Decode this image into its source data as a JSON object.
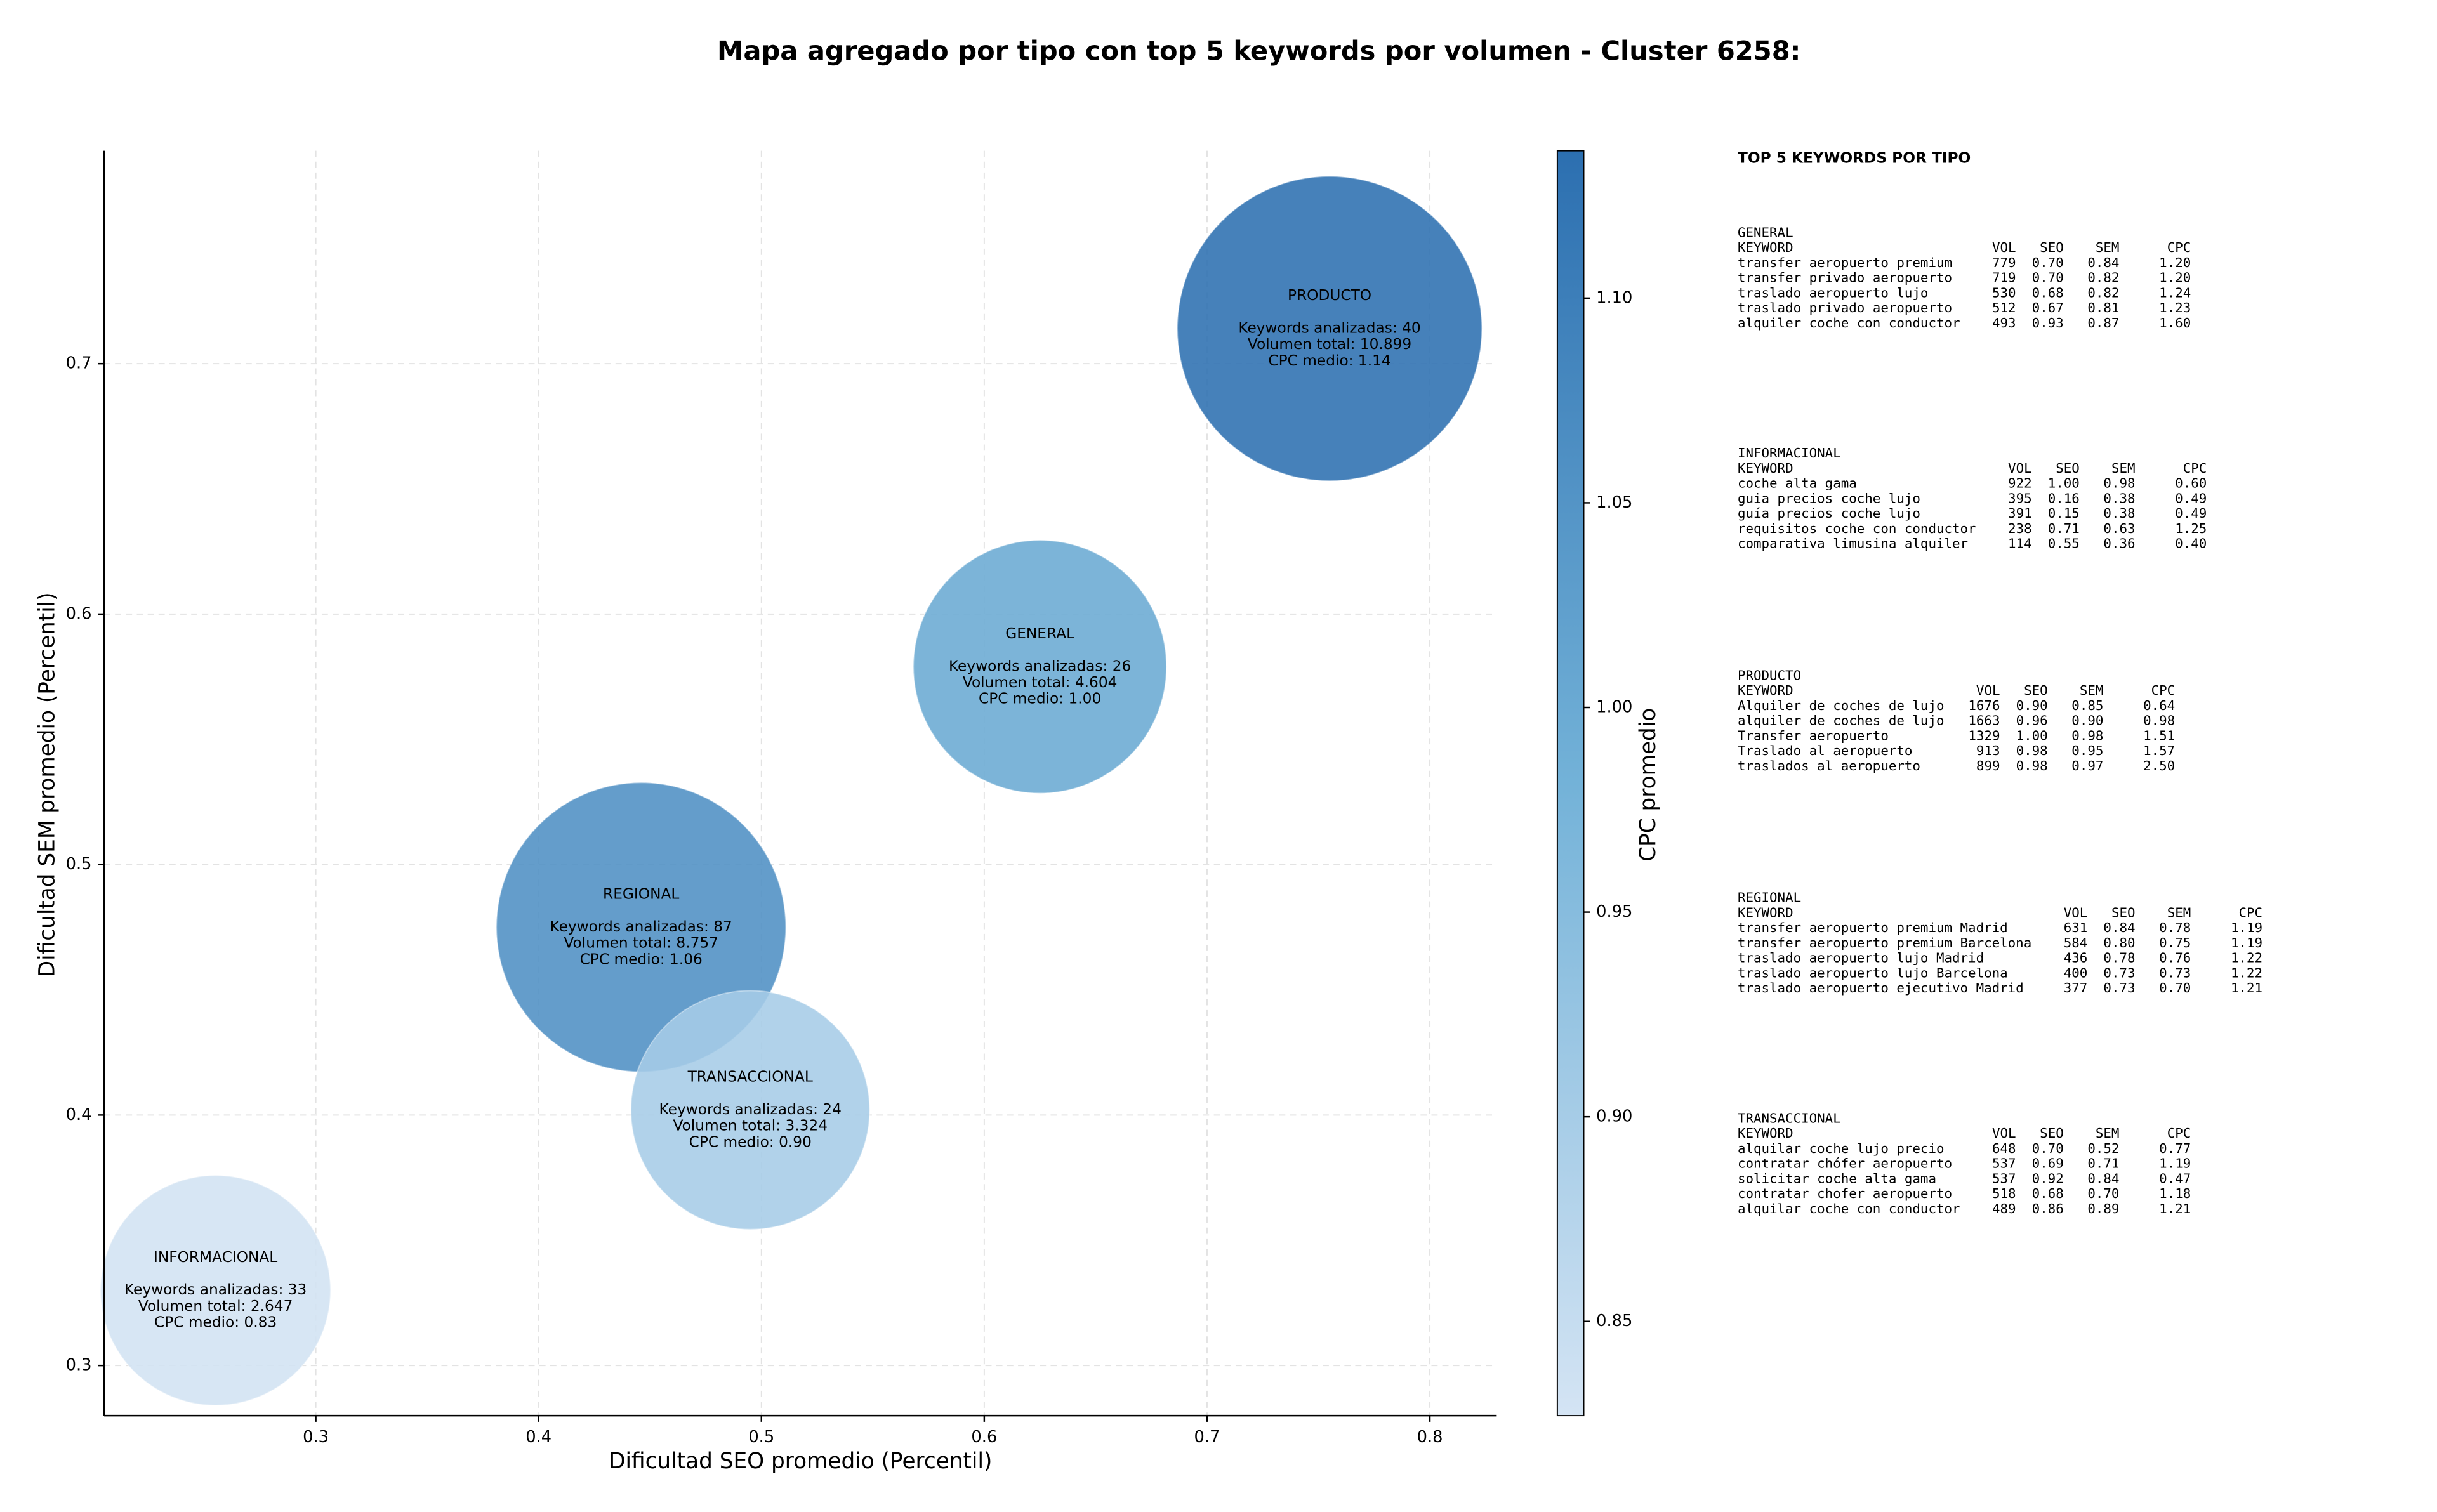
{
  "chart_data": {
    "type": "bubble",
    "title": "Mapa agregado por tipo con top 5 keywords por volumen - Cluster 6258:",
    "xlabel": "Dificultad SEO promedio (Percentil)",
    "ylabel": "Dificultad SEM promedio (Percentil)",
    "xlim": [
      0.205,
      0.83
    ],
    "ylim": [
      0.28,
      0.785
    ],
    "xticks": [
      0.3,
      0.4,
      0.5,
      0.6,
      0.7,
      0.8
    ],
    "yticks": [
      0.3,
      0.4,
      0.5,
      0.6,
      0.7
    ],
    "grid": true,
    "categories": [
      "GENERAL",
      "INFORMACIONAL",
      "PRODUCTO",
      "REGIONAL",
      "TRANSACCIONAL"
    ],
    "x": [
      0.625,
      0.255,
      0.755,
      0.446,
      0.495
    ],
    "values": [
      0.579,
      0.33,
      0.714,
      0.475,
      0.402
    ],
    "sizes": [
      4604,
      2647,
      10899,
      8757,
      3324
    ],
    "cpc": [
      1.0,
      0.83,
      1.14,
      1.06,
      0.9
    ],
    "annotations": [
      [
        "Keywords analizadas: 26",
        "Volumen total: 4.604",
        "CPC medio: 1.00"
      ],
      [
        "Keywords analizadas: 33",
        "Volumen total: 2.647",
        "CPC medio: 0.83"
      ],
      [
        "Keywords analizadas: 40",
        "Volumen total: 10.899",
        "CPC medio: 1.14"
      ],
      [
        "Keywords analizadas: 87",
        "Volumen total: 8.757",
        "CPC medio: 1.06"
      ],
      [
        "Keywords analizadas: 24",
        "Volumen total: 3.324",
        "CPC medio: 0.90"
      ]
    ],
    "colorbar": {
      "label": "CPC promedio",
      "lim": [
        0.827,
        1.136
      ],
      "ticks": [
        0.85,
        {
          "value": 0.9,
          "label": "0.90"
        },
        0.95,
        {
          "value": 1.0,
          "label": "1.00"
        },
        1.05,
        {
          "value": 1.1,
          "label": "1.10"
        }
      ],
      "colormap": [
        "#d4e4f4",
        "#73b2d8",
        "#2c6fb0"
      ]
    }
  },
  "keywords_panel": {
    "title": "TOP 5 KEYWORDS POR TIPO",
    "columns": [
      "KEYWORD",
      "VOL",
      "SEO",
      "SEM",
      "CPC"
    ],
    "sections": [
      {
        "title": "GENERAL",
        "rows": [
          [
            "transfer aeropuerto premium",
            "779",
            "0.70",
            "0.84",
            "1.20"
          ],
          [
            "transfer privado aeropuerto",
            "719",
            "0.70",
            "0.82",
            "1.20"
          ],
          [
            "traslado aeropuerto lujo",
            "530",
            "0.68",
            "0.82",
            "1.24"
          ],
          [
            "traslado privado aeropuerto",
            "512",
            "0.67",
            "0.81",
            "1.23"
          ],
          [
            "alquiler coche con conductor",
            "493",
            "0.93",
            "0.87",
            "1.60"
          ]
        ]
      },
      {
        "title": "INFORMACIONAL",
        "rows": [
          [
            "coche alta gama",
            "922",
            "1.00",
            "0.98",
            "0.60"
          ],
          [
            "guia precios coche lujo",
            "395",
            "0.16",
            "0.38",
            "0.49"
          ],
          [
            "guía precios coche lujo",
            "391",
            "0.15",
            "0.38",
            "0.49"
          ],
          [
            "requisitos coche con conductor",
            "238",
            "0.71",
            "0.63",
            "1.25"
          ],
          [
            "comparativa limusina alquiler",
            "114",
            "0.55",
            "0.36",
            "0.40"
          ]
        ]
      },
      {
        "title": "PRODUCTO",
        "rows": [
          [
            "Alquiler de coches de lujo",
            "1676",
            "0.90",
            "0.85",
            "0.64"
          ],
          [
            "alquiler de coches de lujo",
            "1663",
            "0.96",
            "0.90",
            "0.98"
          ],
          [
            "Transfer aeropuerto",
            "1329",
            "1.00",
            "0.98",
            "1.51"
          ],
          [
            "Traslado al aeropuerto",
            "913",
            "0.98",
            "0.95",
            "1.57"
          ],
          [
            "traslados al aeropuerto",
            "899",
            "0.98",
            "0.97",
            "2.50"
          ]
        ]
      },
      {
        "title": "REGIONAL",
        "rows": [
          [
            "transfer aeropuerto premium Madrid",
            "631",
            "0.84",
            "0.78",
            "1.19"
          ],
          [
            "transfer aeropuerto premium Barcelona",
            "584",
            "0.80",
            "0.75",
            "1.19"
          ],
          [
            "traslado aeropuerto lujo Madrid",
            "436",
            "0.78",
            "0.76",
            "1.22"
          ],
          [
            "traslado aeropuerto lujo Barcelona",
            "400",
            "0.73",
            "0.73",
            "1.22"
          ],
          [
            "traslado aeropuerto ejecutivo Madrid",
            "377",
            "0.73",
            "0.70",
            "1.21"
          ]
        ]
      },
      {
        "title": "TRANSACCIONAL",
        "rows": [
          [
            "alquilar coche lujo precio",
            "648",
            "0.70",
            "0.52",
            "0.77"
          ],
          [
            "contratar chófer aeropuerto",
            "537",
            "0.69",
            "0.71",
            "1.19"
          ],
          [
            "solicitar coche alta gama",
            "537",
            "0.92",
            "0.84",
            "0.47"
          ],
          [
            "contratar chofer aeropuerto",
            "518",
            "0.68",
            "0.70",
            "1.18"
          ],
          [
            "alquilar coche con conductor",
            "489",
            "0.86",
            "0.89",
            "1.21"
          ]
        ]
      }
    ]
  }
}
